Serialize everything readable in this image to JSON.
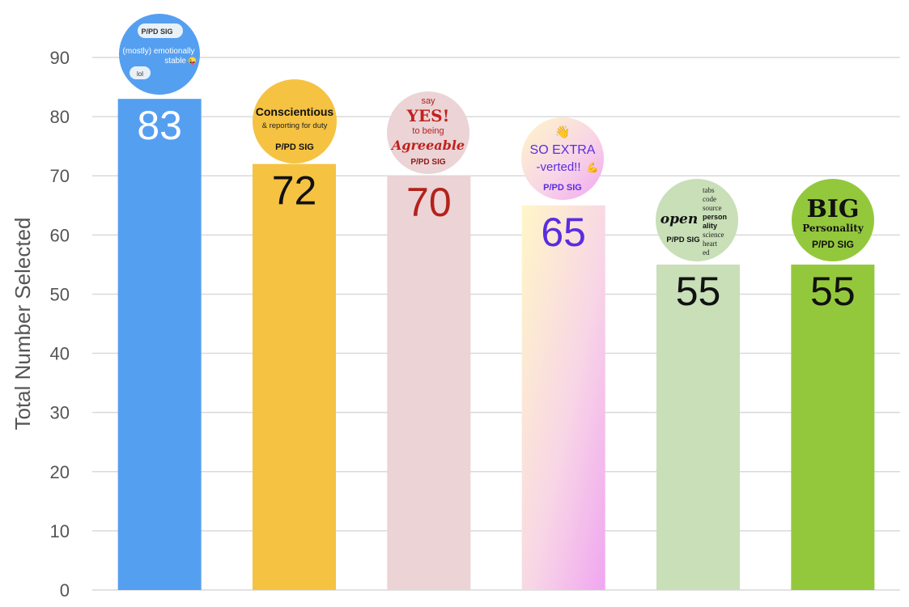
{
  "chart_data": {
    "type": "bar",
    "title": "",
    "xlabel": "",
    "ylabel": "Total Number Selected",
    "ylim": [
      0,
      90
    ],
    "yticks": [
      0,
      10,
      20,
      30,
      40,
      50,
      60,
      70,
      80,
      90
    ],
    "grid": true,
    "categories": [
      "(mostly) emotionally stable",
      "Conscientious",
      "Agreeable",
      "SO EXTRA-verted!!",
      "open",
      "BIG Personality"
    ],
    "values": [
      83,
      72,
      70,
      65,
      55,
      55
    ],
    "data_labels": [
      "83",
      "72",
      "70",
      "65",
      "55",
      "55"
    ],
    "bar_colors": [
      "#559ff0",
      "#f5c242",
      "#ebd3d6",
      "gradient-yellow-pink",
      "#c8dfb8",
      "#94c83c"
    ],
    "label_colors": [
      "#ffffff",
      "#111111",
      "#b3221c",
      "#5a2de0",
      "#111111",
      "#111111"
    ]
  },
  "badges": {
    "stable": {
      "tag": "P/PD SIG",
      "line1": "(mostly) emotionally",
      "line2": "stable",
      "emoji": "😜",
      "reply": "lol"
    },
    "conscientious": {
      "title": "Conscientious",
      "sub": "& reporting for duty",
      "sig": "P/PD SIG"
    },
    "agreeable": {
      "say": "say",
      "yes": "YES!",
      "to": "to being",
      "word": "Agreeable",
      "sig": "P/PD SIG"
    },
    "extra": {
      "emoji": "👋",
      "line1": "SO EXTRA",
      "line2": "-verted!!",
      "emoji2": "💪",
      "sig": "P/PD SIG"
    },
    "open": {
      "word": "open",
      "sig": "P/PD SIG",
      "list": [
        "tabs",
        "code",
        "source",
        "person",
        "ality",
        "science",
        "heart",
        "ed"
      ]
    },
    "big": {
      "word": "BIG",
      "sub": "Personality",
      "sig": "P/PD SIG"
    }
  }
}
